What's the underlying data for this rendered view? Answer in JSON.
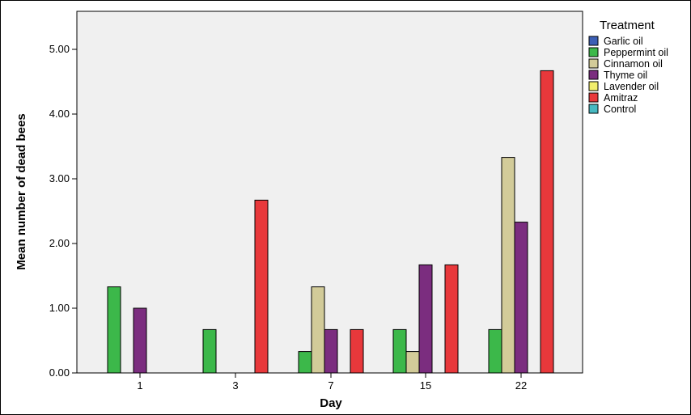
{
  "chart_data": {
    "type": "bar",
    "title": "",
    "xlabel": "Day",
    "ylabel": "Mean number of dead bees",
    "categories": [
      "1",
      "3",
      "7",
      "15",
      "22"
    ],
    "ylim": [
      0,
      5.5
    ],
    "yticks": [
      "0.00",
      "1.00",
      "2.00",
      "3.00",
      "4.00",
      "5.00"
    ],
    "grid": false,
    "legend_title": "Treatment",
    "legend_position": "right",
    "series": [
      {
        "name": "Garlic oil",
        "color": "#3c5fb5",
        "values": [
          0,
          0,
          0,
          0,
          0
        ]
      },
      {
        "name": "Peppermint oil",
        "color": "#3cb84a",
        "values": [
          1.33,
          0.67,
          0.33,
          0.67,
          0.67
        ]
      },
      {
        "name": "Cinnamon oil",
        "color": "#d2cb99",
        "values": [
          0,
          0,
          1.33,
          0.33,
          3.33
        ]
      },
      {
        "name": "Thyme oil",
        "color": "#7b2d7f",
        "values": [
          1.0,
          0,
          0.67,
          1.67,
          2.33
        ]
      },
      {
        "name": "Lavender oil",
        "color": "#f2ee6c",
        "values": [
          0,
          0,
          0,
          0,
          0
        ]
      },
      {
        "name": "Amitraz",
        "color": "#e8383b",
        "values": [
          0,
          2.67,
          0.67,
          1.67,
          4.67
        ]
      },
      {
        "name": "Control",
        "color": "#47b9c1",
        "values": [
          0,
          0,
          0,
          0,
          0
        ]
      }
    ]
  }
}
